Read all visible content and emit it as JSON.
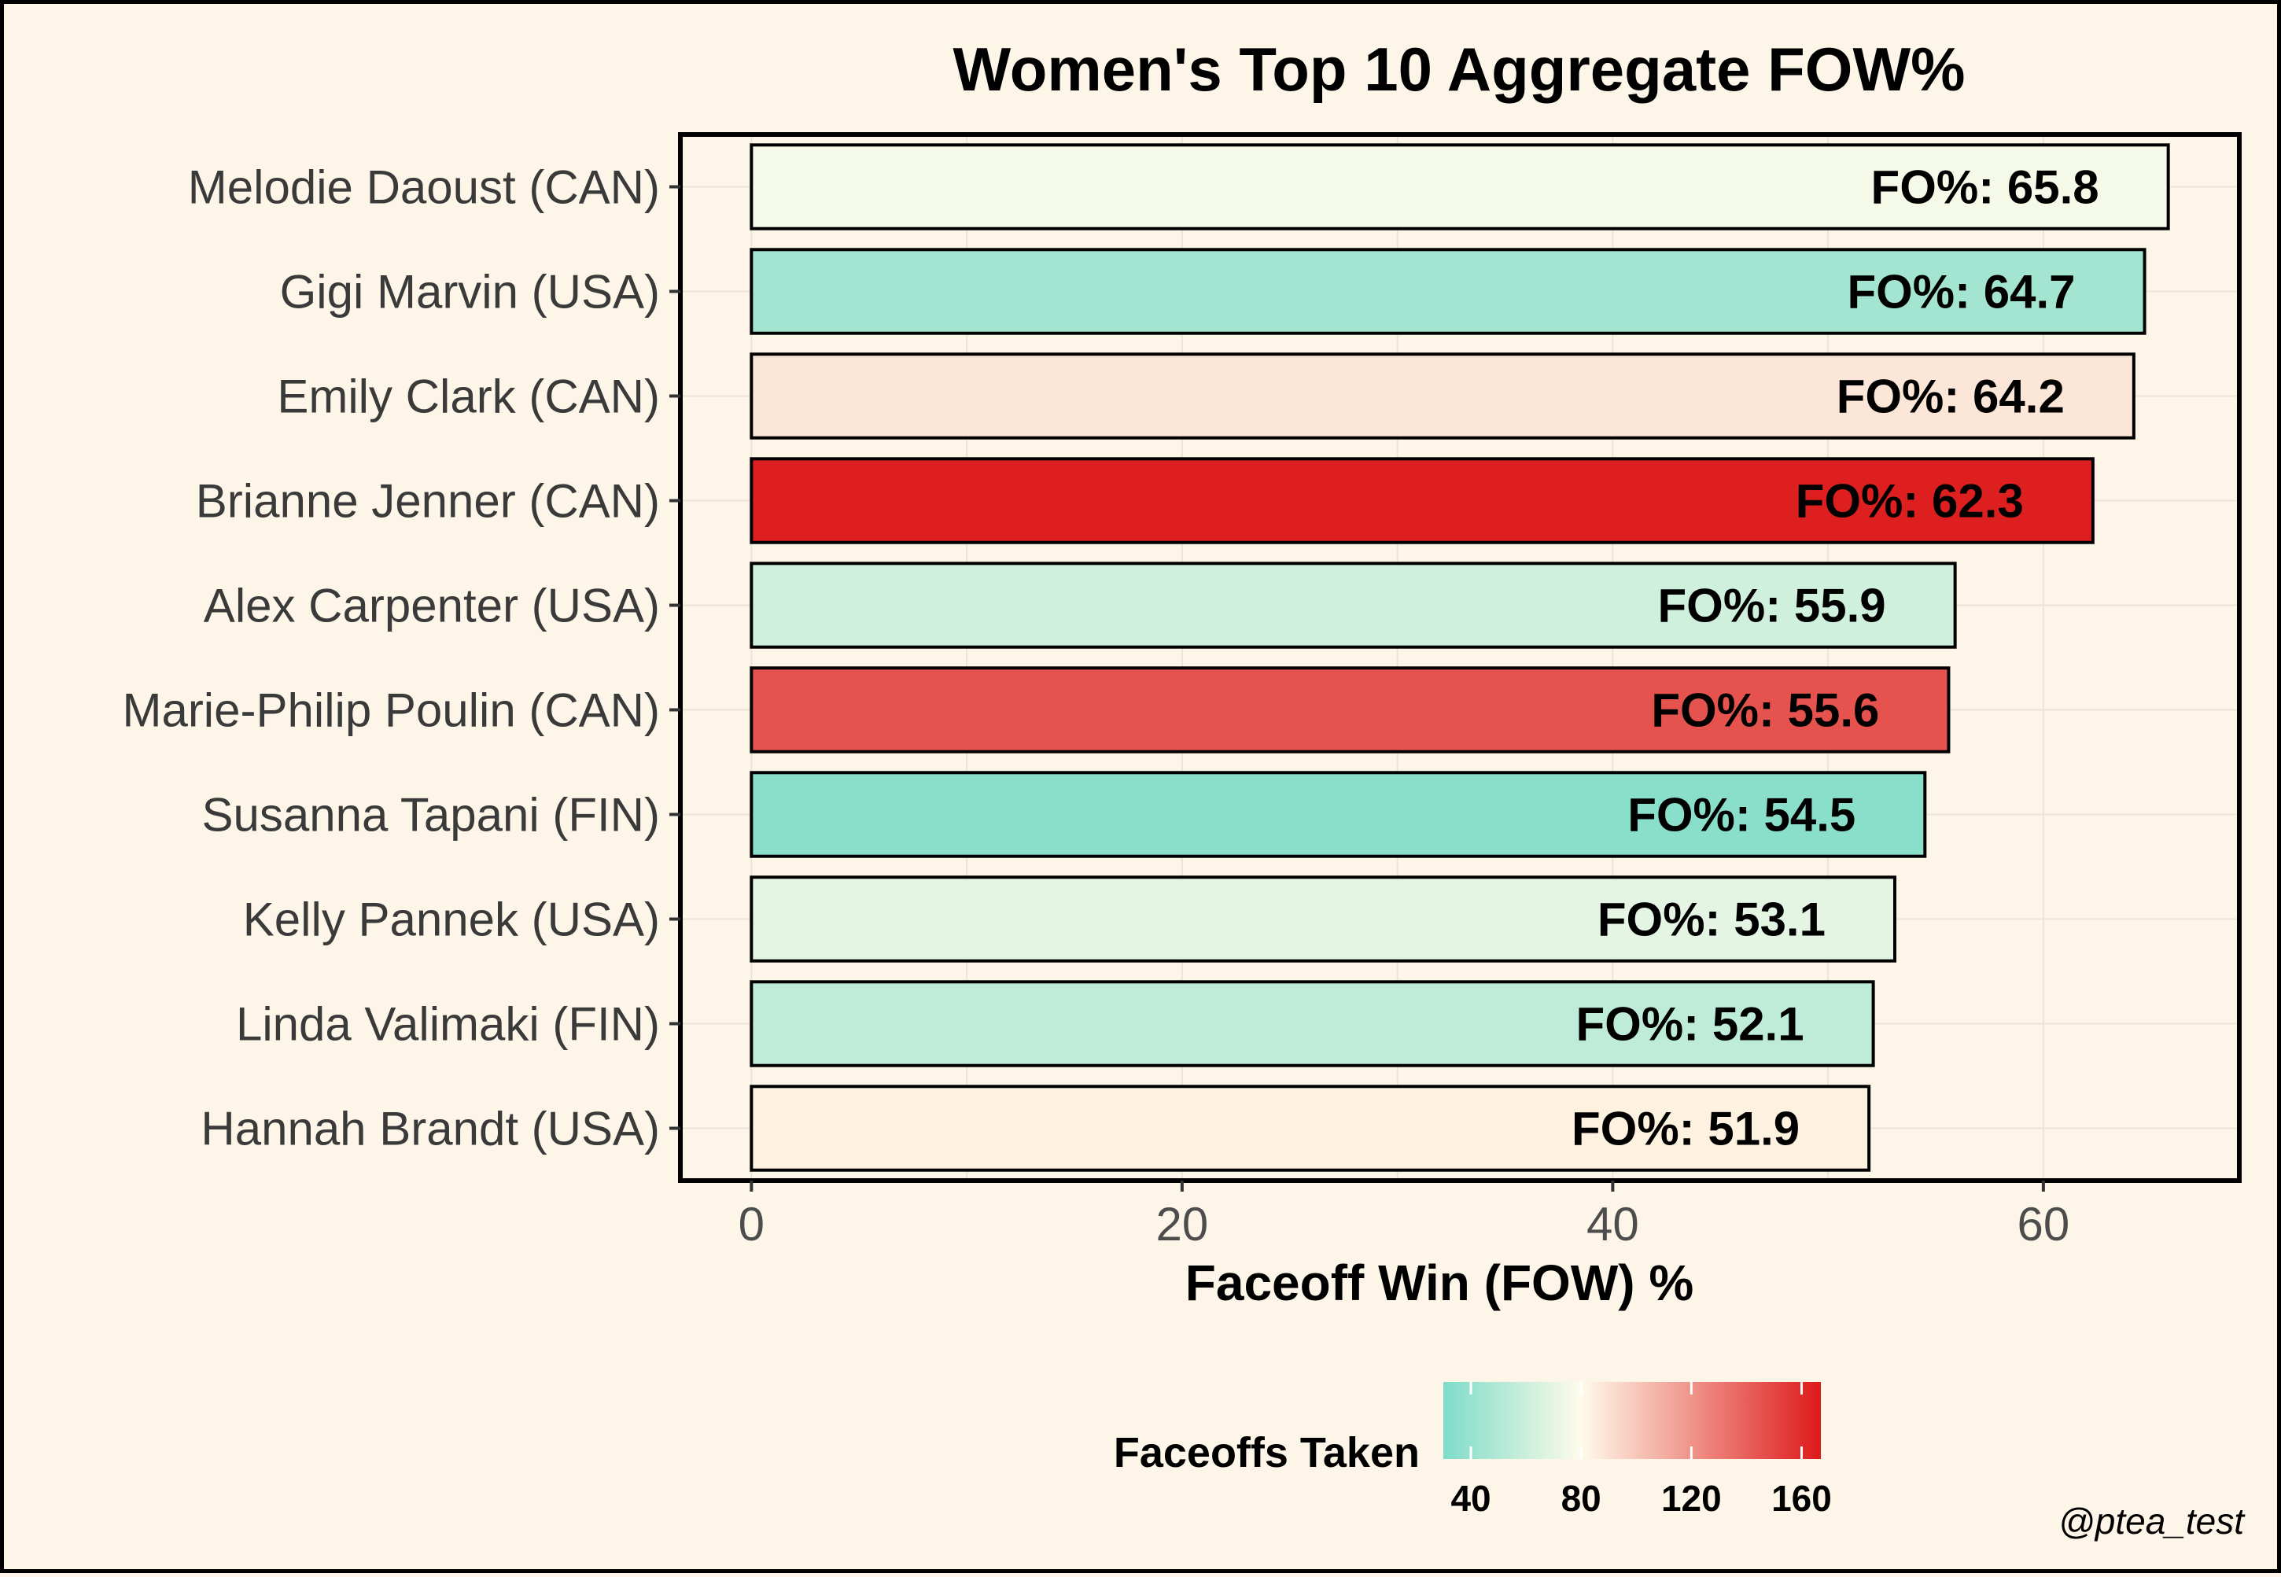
{
  "chart_data": {
    "type": "bar",
    "orientation": "horizontal",
    "title": "Women's Top 10 Aggregate FOW%",
    "xlabel": "Faceoff Win (FOW) %",
    "ylabel": "",
    "xlim": [
      -3.3,
      69.1
    ],
    "xticks": [
      0,
      20,
      40,
      60
    ],
    "categories": [
      "Melodie Daoust (CAN)",
      "Gigi Marvin (USA)",
      "Emily Clark (CAN)",
      "Brianne Jenner (CAN)",
      "Alex Carpenter (USA)",
      "Marie-Philip Poulin (CAN)",
      "Susanna Tapani (FIN)",
      "Kelly Pannek (USA)",
      "Linda Valimaki (FIN)",
      "Hannah Brandt (USA)"
    ],
    "values": [
      65.8,
      64.7,
      64.2,
      62.3,
      55.9,
      55.6,
      54.5,
      53.1,
      52.1,
      51.9
    ],
    "label_prefix": "FO%:  ",
    "fill_values": [
      76,
      45,
      88,
      165,
      62,
      145,
      35,
      70,
      55,
      84
    ],
    "grid": true,
    "legend": {
      "title": "Faceoffs Taken",
      "position": "bottom",
      "ticks": [
        40,
        80,
        120,
        160
      ],
      "range": [
        30,
        167
      ],
      "colors": [
        "#7ddcc8",
        "#fffbea",
        "#dd1a1a"
      ],
      "midpoint": 80
    },
    "caption": "@ptea_test"
  }
}
